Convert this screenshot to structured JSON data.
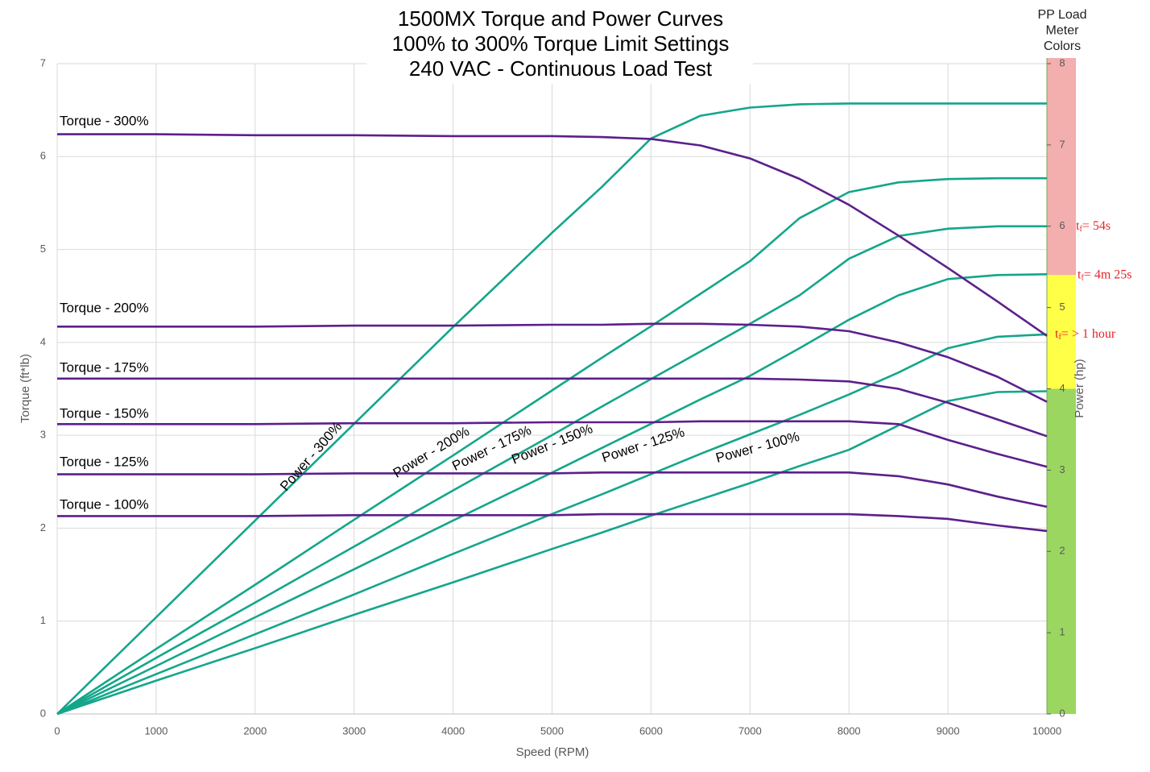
{
  "chart_data": {
    "type": "line",
    "title": [
      "1500MX Torque and Power Curves",
      "100% to 300% Torque Limit Settings",
      "240 VAC - Continuous Load Test"
    ],
    "x_label": "Speed (RPM)",
    "y_label": "Torque (ft*lb)",
    "y2_label": "Power (hp)",
    "x": [
      0,
      1000,
      2000,
      3000,
      4000,
      5000,
      5500,
      6000,
      6500,
      7000,
      7500,
      8000,
      8500,
      9000,
      9500,
      10000
    ],
    "xlim": [
      0,
      10000
    ],
    "xticks": [
      0,
      1000,
      2000,
      3000,
      4000,
      5000,
      6000,
      7000,
      8000,
      9000,
      10000
    ],
    "ylim": [
      0,
      7
    ],
    "yticks": [
      0,
      1,
      2,
      3,
      4,
      5,
      6,
      7
    ],
    "y2lim": [
      0,
      8
    ],
    "y2ticks": [
      0,
      1,
      2,
      3,
      4,
      5,
      6,
      7,
      8
    ],
    "grid": true,
    "series": [
      {
        "name": "Torque - 300%",
        "color": "#5c1f8c",
        "values": [
          6.24,
          6.24,
          6.23,
          6.23,
          6.22,
          6.22,
          6.21,
          6.19,
          6.12,
          5.98,
          5.76,
          5.48,
          5.15,
          4.8,
          4.44,
          4.07
        ]
      },
      {
        "name": "Torque - 200%",
        "color": "#5c1f8c",
        "values": [
          4.17,
          4.17,
          4.17,
          4.18,
          4.18,
          4.19,
          4.19,
          4.2,
          4.2,
          4.19,
          4.17,
          4.12,
          4.0,
          3.84,
          3.63,
          3.36
        ]
      },
      {
        "name": "Torque - 175%",
        "color": "#5c1f8c",
        "values": [
          3.61,
          3.61,
          3.61,
          3.61,
          3.61,
          3.61,
          3.61,
          3.61,
          3.61,
          3.61,
          3.6,
          3.58,
          3.5,
          3.35,
          3.17,
          2.99
        ]
      },
      {
        "name": "Torque - 150%",
        "color": "#5c1f8c",
        "values": [
          3.12,
          3.12,
          3.12,
          3.13,
          3.13,
          3.14,
          3.14,
          3.14,
          3.15,
          3.15,
          3.15,
          3.15,
          3.12,
          2.95,
          2.8,
          2.66
        ]
      },
      {
        "name": "Torque - 125%",
        "color": "#5c1f8c",
        "values": [
          2.58,
          2.58,
          2.58,
          2.59,
          2.59,
          2.59,
          2.6,
          2.6,
          2.6,
          2.6,
          2.6,
          2.6,
          2.56,
          2.47,
          2.34,
          2.23
        ]
      },
      {
        "name": "Torque - 100%",
        "color": "#5c1f8c",
        "values": [
          2.13,
          2.13,
          2.13,
          2.14,
          2.14,
          2.14,
          2.15,
          2.15,
          2.15,
          2.15,
          2.15,
          2.15,
          2.13,
          2.1,
          2.03,
          1.97
        ]
      },
      {
        "name": "Power - 300%",
        "color": "#14a68a",
        "axis": "y2",
        "values": [
          0,
          1.19,
          2.38,
          3.57,
          4.76,
          5.92,
          6.48,
          7.08,
          7.36,
          7.46,
          7.5,
          7.51,
          7.51,
          7.51,
          7.51,
          7.51
        ]
      },
      {
        "name": "Power - 200%",
        "color": "#14a68a",
        "axis": "y2",
        "values": [
          0,
          0.8,
          1.59,
          2.39,
          3.18,
          3.98,
          4.38,
          4.77,
          5.17,
          5.57,
          6.1,
          6.42,
          6.54,
          6.58,
          6.59,
          6.59
        ]
      },
      {
        "name": "Power - 175%",
        "color": "#14a68a",
        "axis": "y2",
        "values": [
          0,
          0.69,
          1.37,
          2.06,
          2.75,
          3.43,
          3.78,
          4.12,
          4.46,
          4.8,
          5.15,
          5.6,
          5.88,
          5.97,
          6.0,
          6.0
        ]
      },
      {
        "name": "Power - 150%",
        "color": "#14a68a",
        "axis": "y2",
        "values": [
          0,
          0.59,
          1.19,
          1.78,
          2.38,
          2.97,
          3.27,
          3.57,
          3.87,
          4.16,
          4.5,
          4.85,
          5.15,
          5.35,
          5.4,
          5.41
        ]
      },
      {
        "name": "Power - 125%",
        "color": "#14a68a",
        "axis": "y2",
        "values": [
          0,
          0.49,
          0.98,
          1.47,
          1.97,
          2.46,
          2.7,
          2.95,
          3.2,
          3.44,
          3.68,
          3.93,
          4.2,
          4.5,
          4.64,
          4.67
        ]
      },
      {
        "name": "Power - 100%",
        "color": "#14a68a",
        "axis": "y2",
        "values": [
          0,
          0.41,
          0.81,
          1.22,
          1.62,
          2.03,
          2.23,
          2.44,
          2.64,
          2.84,
          3.05,
          3.25,
          3.55,
          3.85,
          3.96,
          3.97
        ]
      }
    ],
    "meter": {
      "title": [
        "PP Load",
        "Meter",
        "Colors"
      ],
      "bands": [
        {
          "from": 0,
          "to": 4,
          "color": "#9bd760"
        },
        {
          "from": 4,
          "to": 5.4,
          "color": "#ffff47"
        },
        {
          "from": 5.4,
          "to": 8,
          "color": "#f3aeae"
        }
      ],
      "annotations": [
        {
          "value": 6,
          "t": "t",
          "sub": "f",
          "text": "= 54s"
        },
        {
          "value": 5.4,
          "t": "t",
          "sub": "f",
          "text": "= 4m 25s"
        },
        {
          "value": 4.67,
          "t": "t",
          "sub": "f",
          "text": "= > 1 hour"
        }
      ]
    }
  }
}
